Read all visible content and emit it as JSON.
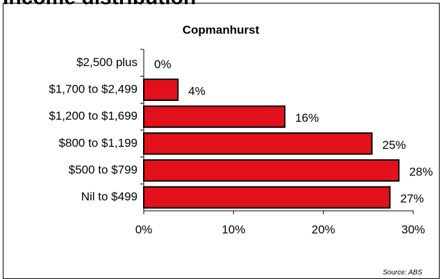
{
  "chart_data": {
    "type": "bar",
    "title": "Income distribution",
    "subtitle": "Copmanhurst",
    "orientation": "horizontal",
    "categories": [
      "$2,500 plus",
      "$1,700 to $2,499",
      "$1,200 to $1,699",
      "$800 to $1,199",
      "$500 to $799",
      "Nil to $499"
    ],
    "values": [
      0,
      3.8,
      15.7,
      25.4,
      28.4,
      27.4
    ],
    "value_labels": [
      "0%",
      "4%",
      "16%",
      "25%",
      "28%",
      "27%"
    ],
    "color": "#e2101a",
    "xlim": [
      0,
      30
    ],
    "xticks": [
      {
        "value": 0,
        "label": "0%"
      },
      {
        "value": 10,
        "label": "10%"
      },
      {
        "value": 20,
        "label": "20%"
      },
      {
        "value": 30,
        "label": "30%"
      }
    ],
    "source": "Source:  ABS"
  }
}
